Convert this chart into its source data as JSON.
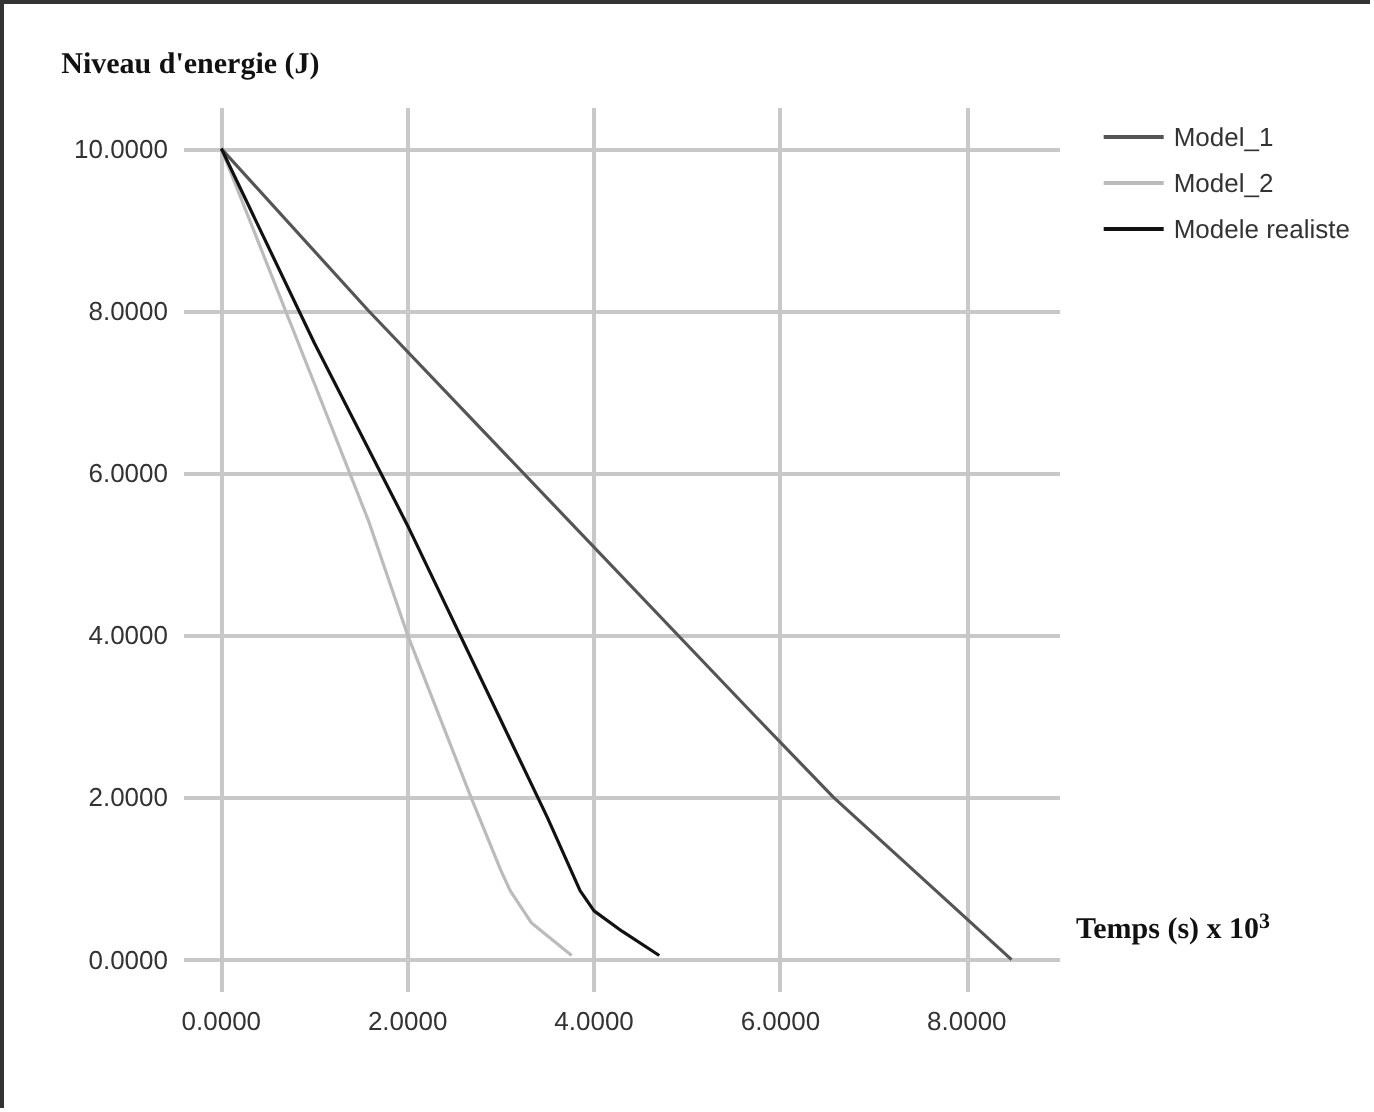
{
  "chart_data": {
    "type": "line",
    "ylabel": "Niveau d'energie (J)",
    "xlabel": "Temps (s) x 10$^{3}$",
    "xlim": [
      -0.4,
      9
    ],
    "ylim": [
      -0.4,
      10.5
    ],
    "xticks": [
      {
        "value": 0,
        "label": "0.0000"
      },
      {
        "value": 2,
        "label": "2.0000"
      },
      {
        "value": 4,
        "label": "4.0000"
      },
      {
        "value": 6,
        "label": "6.0000"
      },
      {
        "value": 8,
        "label": "8.0000"
      }
    ],
    "yticks": [
      {
        "value": 0,
        "label": "0.0000"
      },
      {
        "value": 2,
        "label": "2.0000"
      },
      {
        "value": 4,
        "label": "4.0000"
      },
      {
        "value": 6,
        "label": "6.0000"
      },
      {
        "value": 8,
        "label": "8.0000"
      },
      {
        "value": 10,
        "label": "10.0000"
      }
    ],
    "grid": true,
    "legend": "top right",
    "marker": "none",
    "line_style": "solid",
    "series": [
      {
        "name": "Model_1",
        "color": "#555555",
        "x": [
          0,
          1.58,
          5.73,
          6.57,
          8.48
        ],
        "values": [
          10,
          8.0,
          3.0,
          2.0,
          0
        ]
      },
      {
        "name": "Model_2",
        "color": "#bbbbbb",
        "x": [
          0,
          1,
          1.58,
          2,
          2.68,
          3.0,
          3.1,
          3.33,
          3.76
        ],
        "values": [
          10,
          7.1,
          5.41,
          4.0,
          2.0,
          1.1,
          0.85,
          0.45,
          0.05
        ]
      },
      {
        "name": "Modele realiste",
        "color": "#111111",
        "x": [
          0,
          1,
          2,
          3,
          3.5,
          3.85,
          4.0,
          4.3,
          4.7
        ],
        "values": [
          10,
          7.6,
          5.35,
          2.95,
          1.75,
          0.85,
          0.6,
          0.35,
          0.05
        ]
      }
    ]
  }
}
